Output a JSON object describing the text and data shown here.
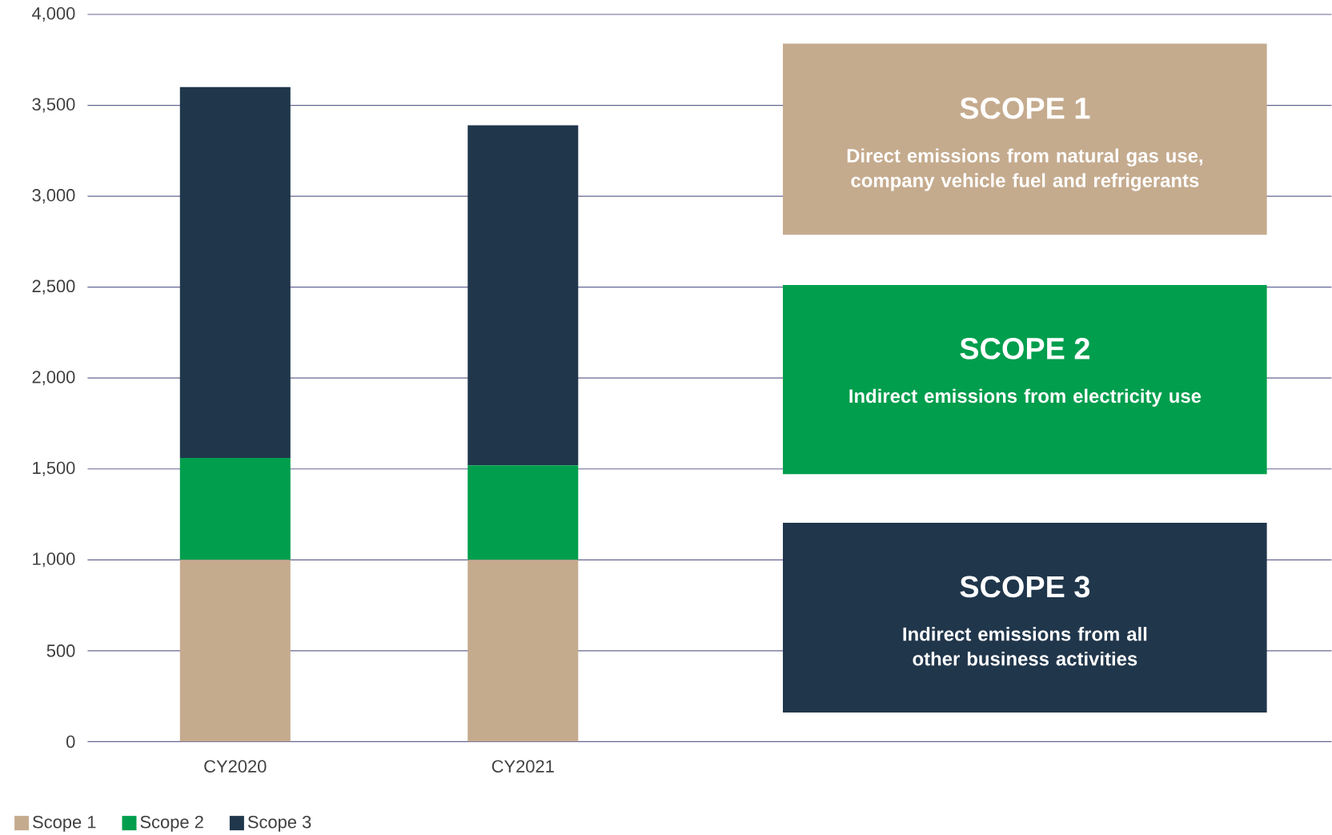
{
  "chart_data": {
    "type": "bar",
    "stacked": true,
    "categories": [
      "CY2020",
      "CY2021"
    ],
    "series": [
      {
        "name": "Scope 1",
        "color": "#c5ab8e",
        "values": [
          1000,
          1000
        ]
      },
      {
        "name": "Scope 2",
        "color": "#009e4d",
        "values": [
          560,
          520
        ]
      },
      {
        "name": "Scope 3",
        "color": "#20364b",
        "values": [
          2040,
          1870
        ]
      }
    ],
    "ylim": [
      0,
      4000
    ],
    "yticks": [
      {
        "value": 0,
        "label": "0"
      },
      {
        "value": 500,
        "label": "500"
      },
      {
        "value": 1000,
        "label": "1,000"
      },
      {
        "value": 1500,
        "label": "1,500"
      },
      {
        "value": 2000,
        "label": "2,000"
      },
      {
        "value": 2500,
        "label": "2,500"
      },
      {
        "value": 3000,
        "label": "3,000"
      },
      {
        "value": 3500,
        "label": "3,500"
      },
      {
        "value": 4000,
        "label": "4,000"
      }
    ],
    "grid": "y",
    "legend": "bottom",
    "annotations": [
      "SCOPE 1",
      "Direct emissions from natural gas use, company vehicle fuel and refrigerants",
      "SCOPE 2",
      "Indirect emissions from electricity use",
      "SCOPE 3",
      "Indirect emissions from all other business activities"
    ]
  }
}
